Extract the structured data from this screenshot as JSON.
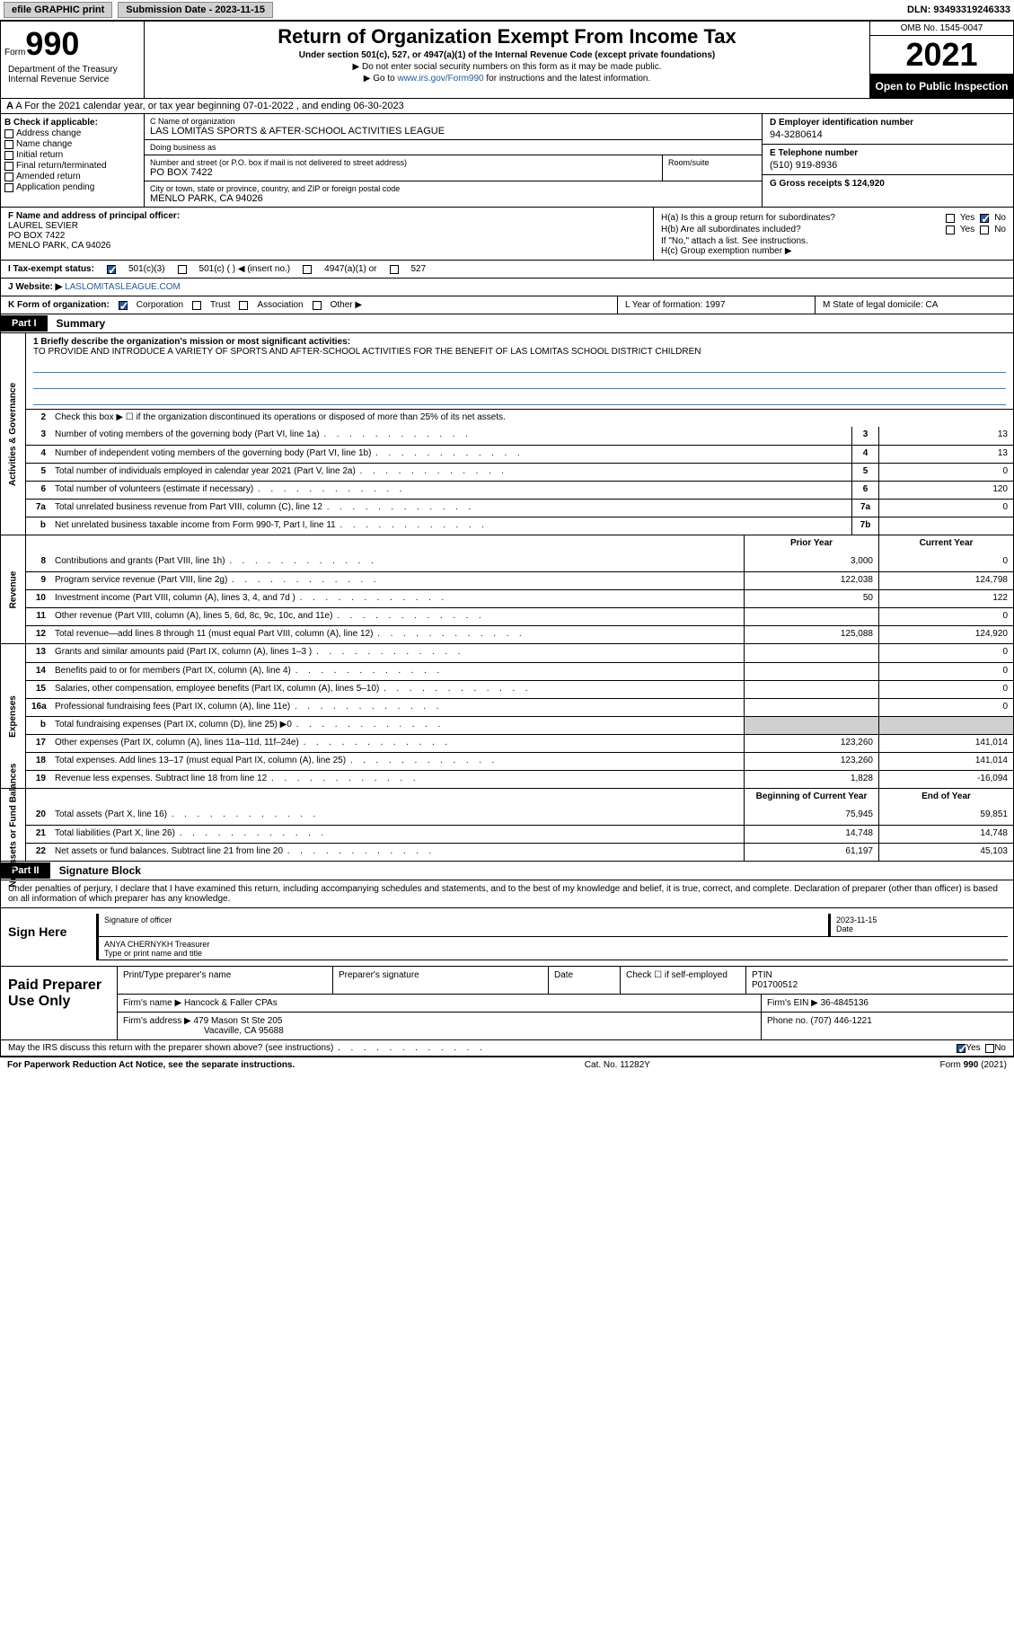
{
  "topbar": {
    "efile_btn": "efile GRAPHIC print",
    "submission_label": "Submission Date - 2023-11-15",
    "dln_label": "DLN: 93493319246333"
  },
  "header": {
    "form_label": "Form",
    "form_number": "990",
    "title": "Return of Organization Exempt From Income Tax",
    "subtitle": "Under section 501(c), 527, or 4947(a)(1) of the Internal Revenue Code (except private foundations)",
    "note1": "▶ Do not enter social security numbers on this form as it may be made public.",
    "note2_pre": "▶ Go to ",
    "note2_link": "www.irs.gov/Form990",
    "note2_post": " for instructions and the latest information.",
    "omb": "OMB No. 1545-0047",
    "year": "2021",
    "open": "Open to Public Inspection",
    "dept": "Department of the Treasury Internal Revenue Service"
  },
  "row_a": "A For the 2021 calendar year, or tax year beginning 07-01-2022   , and ending 06-30-2023",
  "col_b": {
    "label": "B Check if applicable:",
    "items": [
      "Address change",
      "Name change",
      "Initial return",
      "Final return/terminated",
      "Amended return",
      "Application pending"
    ]
  },
  "col_c": {
    "name_lbl": "C Name of organization",
    "name": "LAS LOMITAS SPORTS & AFTER-SCHOOL ACTIVITIES LEAGUE",
    "dba_lbl": "Doing business as",
    "dba": "",
    "addr_lbl": "Number and street (or P.O. box if mail is not delivered to street address)",
    "addr": "PO BOX 7422",
    "room_lbl": "Room/suite",
    "city_lbl": "City or town, state or province, country, and ZIP or foreign postal code",
    "city": "MENLO PARK, CA  94026"
  },
  "col_d": {
    "ein_lbl": "D Employer identification number",
    "ein": "94-3280614",
    "tel_lbl": "E Telephone number",
    "tel": "(510) 919-8936",
    "gross_lbl": "G Gross receipts $ 124,920"
  },
  "fgh": {
    "f_lbl": "F Name and address of principal officer:",
    "f_name": "LAUREL SEVIER",
    "f_addr1": "PO BOX 7422",
    "f_addr2": "MENLO PARK, CA  94026",
    "ha": "H(a)  Is this a group return for subordinates?",
    "hb": "H(b)  Are all subordinates included?",
    "h_note": "If \"No,\" attach a list. See instructions.",
    "hc": "H(c)  Group exemption number ▶",
    "yes": "Yes",
    "no": "No"
  },
  "status": {
    "i_lbl": "I  Tax-exempt status:",
    "s1": "501(c)(3)",
    "s2": "501(c) (   ) ◀ (insert no.)",
    "s3": "4947(a)(1) or",
    "s4": "527"
  },
  "j": {
    "lbl": "J  Website: ▶ ",
    "val": "LASLOMITASLEAGUE.COM"
  },
  "klm": {
    "k_lbl": "K Form of organization:",
    "k_opts": [
      "Corporation",
      "Trust",
      "Association",
      "Other ▶"
    ],
    "l": "L Year of formation: 1997",
    "m": "M State of legal domicile: CA"
  },
  "part1": {
    "hdr": "Part I",
    "title": "Summary"
  },
  "mission": {
    "lbl": "1  Briefly describe the organization's mission or most significant activities:",
    "text": "TO PROVIDE AND INTRODUCE A VARIETY OF SPORTS AND AFTER-SCHOOL ACTIVITIES FOR THE BENEFIT OF LAS LOMITAS SCHOOL DISTRICT CHILDREN"
  },
  "gov": {
    "side": "Activities & Governance",
    "l2": "Check this box ▶ ☐ if the organization discontinued its operations or disposed of more than 25% of its net assets.",
    "lines": [
      {
        "n": "3",
        "t": "Number of voting members of the governing body (Part VI, line 1a)",
        "box": "3",
        "v": "13"
      },
      {
        "n": "4",
        "t": "Number of independent voting members of the governing body (Part VI, line 1b)",
        "box": "4",
        "v": "13"
      },
      {
        "n": "5",
        "t": "Total number of individuals employed in calendar year 2021 (Part V, line 2a)",
        "box": "5",
        "v": "0"
      },
      {
        "n": "6",
        "t": "Total number of volunteers (estimate if necessary)",
        "box": "6",
        "v": "120"
      },
      {
        "n": "7a",
        "t": "Total unrelated business revenue from Part VIII, column (C), line 12",
        "box": "7a",
        "v": "0"
      },
      {
        "n": "b",
        "t": "Net unrelated business taxable income from Form 990-T, Part I, line 11",
        "box": "7b",
        "v": ""
      }
    ]
  },
  "rev": {
    "side": "Revenue",
    "prior_hdr": "Prior Year",
    "curr_hdr": "Current Year",
    "lines": [
      {
        "n": "8",
        "t": "Contributions and grants (Part VIII, line 1h)",
        "p": "3,000",
        "c": "0"
      },
      {
        "n": "9",
        "t": "Program service revenue (Part VIII, line 2g)",
        "p": "122,038",
        "c": "124,798"
      },
      {
        "n": "10",
        "t": "Investment income (Part VIII, column (A), lines 3, 4, and 7d )",
        "p": "50",
        "c": "122"
      },
      {
        "n": "11",
        "t": "Other revenue (Part VIII, column (A), lines 5, 6d, 8c, 9c, 10c, and 11e)",
        "p": "",
        "c": "0"
      },
      {
        "n": "12",
        "t": "Total revenue—add lines 8 through 11 (must equal Part VIII, column (A), line 12)",
        "p": "125,088",
        "c": "124,920"
      }
    ]
  },
  "exp": {
    "side": "Expenses",
    "lines": [
      {
        "n": "13",
        "t": "Grants and similar amounts paid (Part IX, column (A), lines 1–3 )",
        "p": "",
        "c": "0"
      },
      {
        "n": "14",
        "t": "Benefits paid to or for members (Part IX, column (A), line 4)",
        "p": "",
        "c": "0"
      },
      {
        "n": "15",
        "t": "Salaries, other compensation, employee benefits (Part IX, column (A), lines 5–10)",
        "p": "",
        "c": "0"
      },
      {
        "n": "16a",
        "t": "Professional fundraising fees (Part IX, column (A), line 11e)",
        "p": "",
        "c": "0"
      },
      {
        "n": "b",
        "t": "Total fundraising expenses (Part IX, column (D), line 25) ▶0",
        "p": "gray",
        "c": "gray"
      },
      {
        "n": "17",
        "t": "Other expenses (Part IX, column (A), lines 11a–11d, 11f–24e)",
        "p": "123,260",
        "c": "141,014"
      },
      {
        "n": "18",
        "t": "Total expenses. Add lines 13–17 (must equal Part IX, column (A), line 25)",
        "p": "123,260",
        "c": "141,014"
      },
      {
        "n": "19",
        "t": "Revenue less expenses. Subtract line 18 from line 12",
        "p": "1,828",
        "c": "-16,094"
      }
    ]
  },
  "net": {
    "side": "Net Assets or Fund Balances",
    "beg_hdr": "Beginning of Current Year",
    "end_hdr": "End of Year",
    "lines": [
      {
        "n": "20",
        "t": "Total assets (Part X, line 16)",
        "p": "75,945",
        "c": "59,851"
      },
      {
        "n": "21",
        "t": "Total liabilities (Part X, line 26)",
        "p": "14,748",
        "c": "14,748"
      },
      {
        "n": "22",
        "t": "Net assets or fund balances. Subtract line 21 from line 20",
        "p": "61,197",
        "c": "45,103"
      }
    ]
  },
  "part2": {
    "hdr": "Part II",
    "title": "Signature Block"
  },
  "sig": {
    "intro": "Under penalties of perjury, I declare that I have examined this return, including accompanying schedules and statements, and to the best of my knowledge and belief, it is true, correct, and complete. Declaration of preparer (other than officer) is based on all information of which preparer has any knowledge.",
    "here": "Sign Here",
    "sig_lbl": "Signature of officer",
    "date": "2023-11-15",
    "date_lbl": "Date",
    "name": "ANYA CHERNYKH  Treasurer",
    "name_lbl": "Type or print name and title"
  },
  "prep": {
    "title": "Paid Preparer Use Only",
    "r1": {
      "c1": "Print/Type preparer's name",
      "c2": "Preparer's signature",
      "c3": "Date",
      "c4_lbl": "Check ☐ if self-employed",
      "c5_lbl": "PTIN",
      "c5": "P01700512"
    },
    "r2": {
      "lbl": "Firm's name    ▶",
      "val": "Hancock & Faller CPAs",
      "ein_lbl": "Firm's EIN ▶",
      "ein": "36-4845136"
    },
    "r3": {
      "lbl": "Firm's address ▶",
      "val1": "479 Mason St Ste 205",
      "val2": "Vacaville, CA  95688",
      "ph_lbl": "Phone no.",
      "ph": "(707) 446-1221"
    }
  },
  "footer": {
    "discuss": "May the IRS discuss this return with the preparer shown above? (see instructions)",
    "yes": "Yes",
    "no": "No",
    "paperwork": "For Paperwork Reduction Act Notice, see the separate instructions.",
    "cat": "Cat. No. 11282Y",
    "form": "Form 990 (2021)"
  }
}
